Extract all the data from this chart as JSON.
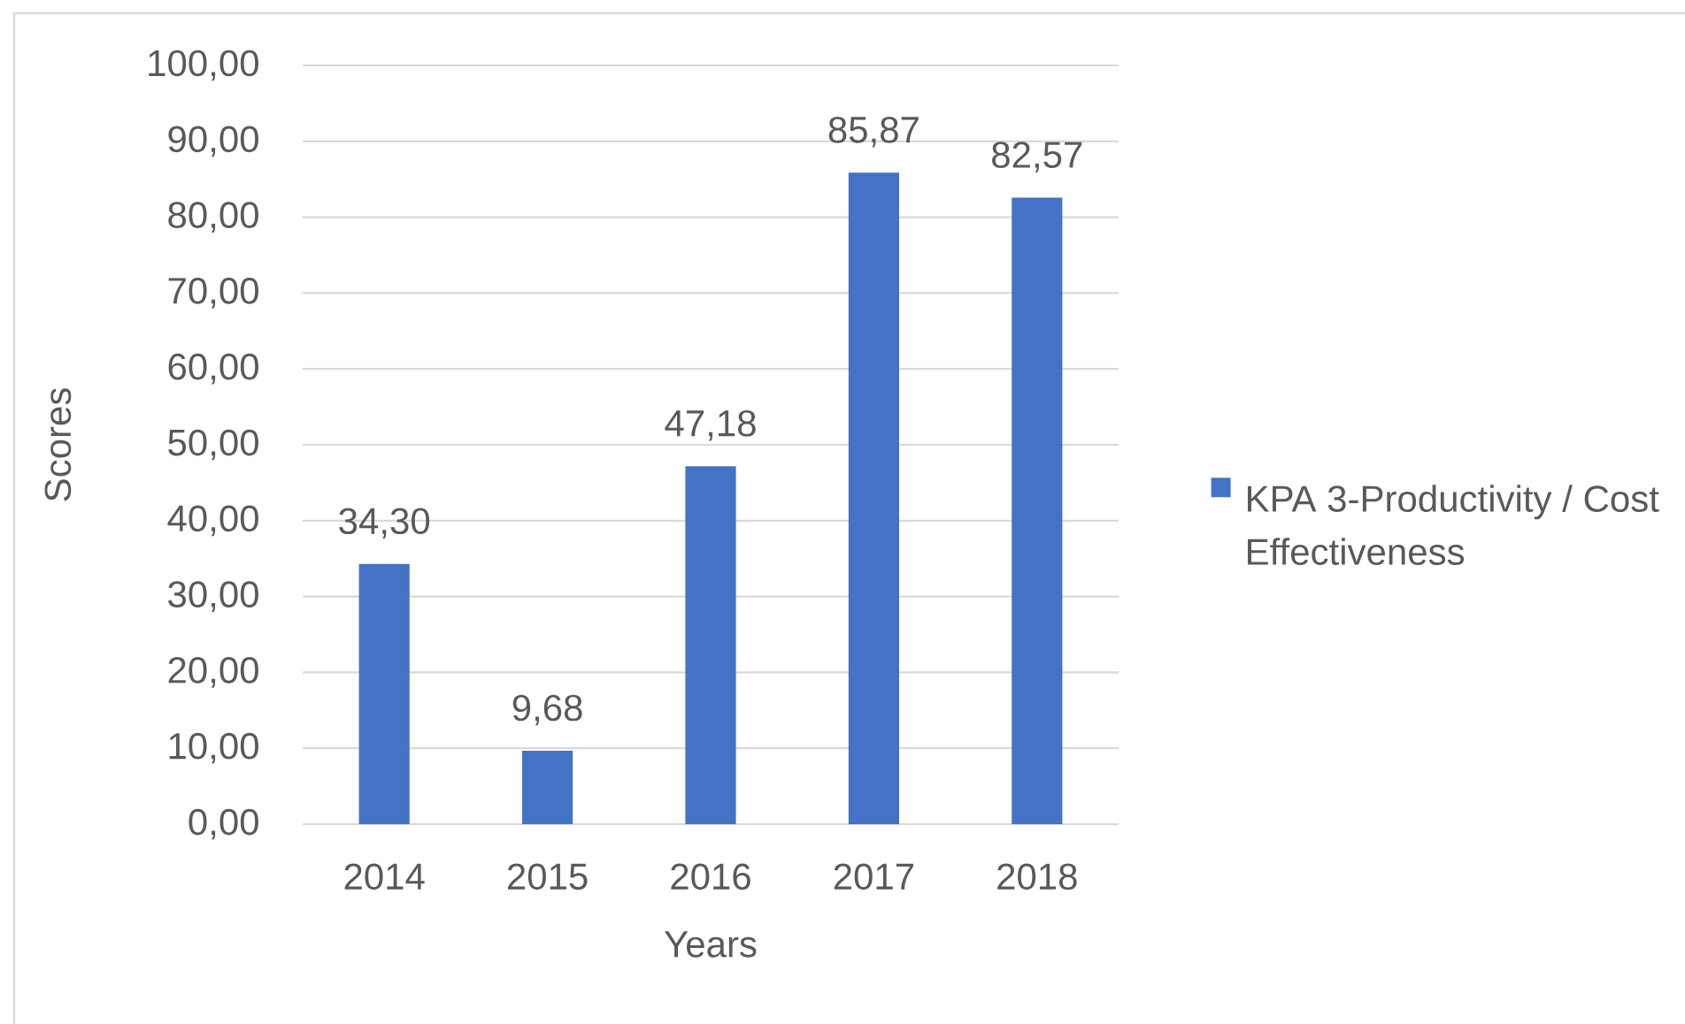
{
  "chart_data": {
    "type": "bar",
    "xlabel": "Years",
    "ylabel": "Scores",
    "categories": [
      "2014",
      "2015",
      "2016",
      "2017",
      "2018"
    ],
    "series": [
      {
        "name": "KPA 3-Productivity / Cost Effectiveness",
        "color": "#4472c4",
        "values": [
          34.3,
          9.68,
          47.18,
          85.87,
          82.57
        ],
        "value_labels": [
          "34,30",
          "9,68",
          "47,18",
          "85,87",
          "82,57"
        ]
      }
    ],
    "ylim": [
      0,
      100
    ],
    "yticks": [
      {
        "value": 0,
        "label": "0,00"
      },
      {
        "value": 10,
        "label": "10,00"
      },
      {
        "value": 20,
        "label": "20,00"
      },
      {
        "value": 30,
        "label": "30,00"
      },
      {
        "value": 40,
        "label": "40,00"
      },
      {
        "value": 50,
        "label": "50,00"
      },
      {
        "value": 60,
        "label": "60,00"
      },
      {
        "value": 70,
        "label": "70,00"
      },
      {
        "value": 80,
        "label": "80,00"
      },
      {
        "value": 90,
        "label": "90,00"
      },
      {
        "value": 100,
        "label": "100,00"
      }
    ],
    "grid": "y",
    "legend": "right"
  }
}
